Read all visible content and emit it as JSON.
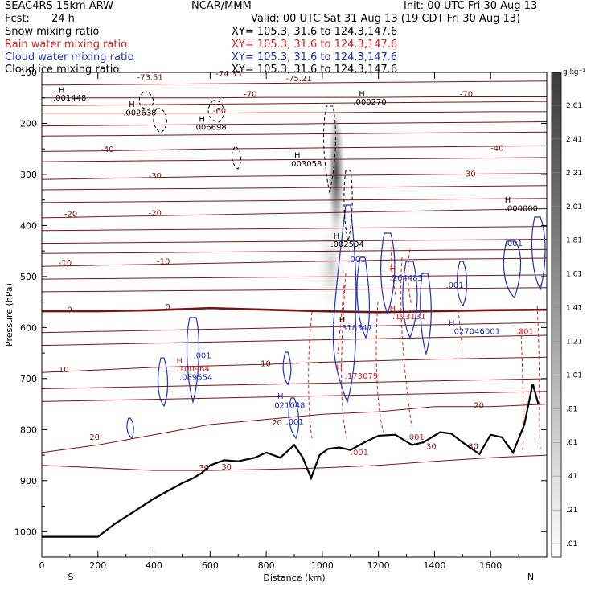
{
  "header": {
    "model": "SEAC4RS 15km ARW",
    "center": "NCAR/MMM",
    "init": "Init: 00 UTC Fri 30 Aug 13",
    "fcst_label": "Fcst:",
    "fcst_value": "24 h",
    "valid": "Valid: 00 UTC Sat 31 Aug 13 (19 CDT Fri 30 Aug 13)",
    "fields": [
      {
        "name": "Snow mixing ratio",
        "xy": "XY= 105.3, 31.6 to 124.3,147.6",
        "color": "#000000"
      },
      {
        "name": "Rain water mixing ratio",
        "xy": "XY= 105.3, 31.6 to 124.3,147.6",
        "color": "#e02020"
      },
      {
        "name": "Cloud water mixing ratio",
        "xy": "XY= 105.3, 31.6 to 124.3,147.6",
        "color": "#2030c0"
      },
      {
        "name": "Cloud ice mixing ratio",
        "xy": "XY= 105.3, 31.6 to 124.3,147.6",
        "color": "#000000"
      }
    ]
  },
  "chart_data": {
    "type": "contour",
    "xlabel": "Distance (km)",
    "ylabel": "Pressure (hPa)",
    "xlim": [
      0,
      1800
    ],
    "ylim": [
      1050,
      100
    ],
    "x_ticks": [
      0,
      200,
      400,
      600,
      800,
      1000,
      1200,
      1400,
      1600
    ],
    "y_ticks": [
      100,
      200,
      300,
      400,
      500,
      600,
      700,
      800,
      900,
      1000
    ],
    "y_tick_labels": [
      "100",
      "200",
      "300",
      "400",
      "500",
      "600",
      "700",
      "800",
      "900",
      "1000"
    ],
    "x_end_labels": {
      "left": "S",
      "right": "N"
    },
    "colorbar": {
      "unit": "g kg⁻¹",
      "ticks": [
        "2.61",
        "2.41",
        "2.21",
        "2.01",
        "1.81",
        "1.61",
        "1.41",
        "1.21",
        "1.01",
        ".81",
        ".61",
        ".41",
        ".21",
        ".01"
      ]
    },
    "colors": {
      "temperature": "#7a1414",
      "zero_isotherm": "#7a1414",
      "rain": "#e02020",
      "cloud_water": "#2030c0",
      "ice": "#000000",
      "terrain": "#000000"
    },
    "terrain": [
      [
        0,
        1010
      ],
      [
        200,
        1010
      ],
      [
        260,
        985
      ],
      [
        330,
        960
      ],
      [
        400,
        935
      ],
      [
        450,
        920
      ],
      [
        500,
        905
      ],
      [
        540,
        895
      ],
      [
        570,
        885
      ],
      [
        600,
        870
      ],
      [
        650,
        860
      ],
      [
        700,
        862
      ],
      [
        760,
        855
      ],
      [
        800,
        845
      ],
      [
        850,
        855
      ],
      [
        900,
        830
      ],
      [
        930,
        855
      ],
      [
        960,
        895
      ],
      [
        990,
        850
      ],
      [
        1020,
        838
      ],
      [
        1060,
        835
      ],
      [
        1100,
        840
      ],
      [
        1150,
        825
      ],
      [
        1200,
        812
      ],
      [
        1260,
        810
      ],
      [
        1320,
        830
      ],
      [
        1360,
        825
      ],
      [
        1420,
        805
      ],
      [
        1460,
        808
      ],
      [
        1500,
        825
      ],
      [
        1560,
        848
      ],
      [
        1600,
        810
      ],
      [
        1640,
        815
      ],
      [
        1680,
        845
      ],
      [
        1720,
        790
      ],
      [
        1750,
        710
      ],
      [
        1770,
        750
      ]
    ],
    "isotherms": [
      {
        "label": "30",
        "p": [
          870,
          875,
          880,
          880,
          878,
          875,
          870,
          862,
          855,
          850
        ]
      },
      {
        "label": "20",
        "p": [
          845,
          830,
          810,
          790,
          780,
          770,
          765,
          755,
          755,
          750
        ]
      },
      {
        "label": "10",
        "p": [
          688,
          683,
          678,
          675,
          672,
          668,
          665,
          662,
          660,
          658
        ]
      },
      {
        "label": "0",
        "p": [
          568,
          568,
          566,
          562,
          565,
          568,
          570,
          568,
          566,
          565
        ]
      },
      {
        "label": "-10",
        "p": [
          480,
          478,
          476,
          474,
          472,
          470,
          468,
          466,
          465,
          464
        ]
      },
      {
        "label": "-20",
        "p": [
          385,
          383,
          381,
          379,
          377,
          375,
          373,
          371,
          369,
          367
        ]
      },
      {
        "label": "-30",
        "p": [
          310,
          308,
          306,
          304,
          303,
          302,
          301,
          300,
          299,
          298
        ]
      },
      {
        "label": "-40",
        "p": [
          255,
          254,
          252,
          250,
          249,
          248,
          247,
          246,
          245,
          244
        ]
      },
      {
        "label": "-60",
        "p": [
          180,
          180,
          180,
          180,
          179,
          179,
          178,
          178,
          177,
          177
        ]
      },
      {
        "label": "-70",
        "p": [
          150,
          150,
          150,
          150,
          149,
          149,
          149,
          148,
          148,
          148
        ]
      }
    ],
    "labels": [
      {
        "text": "-73.51",
        "x": 340,
        "p": 115,
        "color": "#7a1414"
      },
      {
        "text": "-74.35",
        "x": 620,
        "p": 108,
        "color": "#7a1414"
      },
      {
        "text": "-75.21",
        "x": 870,
        "p": 117,
        "color": "#7a1414"
      },
      {
        "text": "-70",
        "x": 720,
        "p": 148,
        "color": "#7a1414"
      },
      {
        "text": "-70",
        "x": 1490,
        "p": 148,
        "color": "#7a1414"
      },
      {
        "text": "-60",
        "x": 610,
        "p": 180,
        "color": "#7a1414"
      },
      {
        "text": "-40",
        "x": 210,
        "p": 256,
        "color": "#7a1414"
      },
      {
        "text": "-40",
        "x": 1600,
        "p": 254,
        "color": "#7a1414"
      },
      {
        "text": "-30",
        "x": 380,
        "p": 308,
        "color": "#7a1414"
      },
      {
        "text": "-30",
        "x": 1500,
        "p": 304,
        "color": "#7a1414"
      },
      {
        "text": "-20",
        "x": 80,
        "p": 383,
        "color": "#7a1414"
      },
      {
        "text": "-20",
        "x": 380,
        "p": 381,
        "color": "#7a1414"
      },
      {
        "text": "-10",
        "x": 60,
        "p": 478,
        "color": "#7a1414"
      },
      {
        "text": "-10",
        "x": 410,
        "p": 476,
        "color": "#7a1414"
      },
      {
        "text": "0",
        "x": 90,
        "p": 570,
        "color": "#7a1414"
      },
      {
        "text": "0",
        "x": 440,
        "p": 565,
        "color": "#7a1414"
      },
      {
        "text": "10",
        "x": 60,
        "p": 688,
        "color": "#7a1414"
      },
      {
        "text": "10",
        "x": 780,
        "p": 676,
        "color": "#7a1414"
      },
      {
        "text": "20",
        "x": 170,
        "p": 820,
        "color": "#7a1414"
      },
      {
        "text": "20",
        "x": 820,
        "p": 792,
        "color": "#7a1414"
      },
      {
        "text": "20",
        "x": 1540,
        "p": 758,
        "color": "#7a1414"
      },
      {
        "text": "30",
        "x": 560,
        "p": 880,
        "color": "#7a1414"
      },
      {
        "text": "30",
        "x": 640,
        "p": 878,
        "color": "#7a1414"
      },
      {
        "text": "30",
        "x": 1370,
        "p": 838,
        "color": "#7a1414"
      },
      {
        "text": "30",
        "x": 1520,
        "p": 838,
        "color": "#7a1414"
      },
      {
        "text": "H",
        "x": 60,
        "p": 140,
        "color": "#000000"
      },
      {
        "text": ".001448",
        "x": 40,
        "p": 155,
        "color": "#000000"
      },
      {
        "text": "H",
        "x": 310,
        "p": 168,
        "color": "#000000"
      },
      {
        "text": ".002638",
        "x": 290,
        "p": 184,
        "color": "#000000"
      },
      {
        "text": "H",
        "x": 560,
        "p": 197,
        "color": "#000000"
      },
      {
        "text": ".006698",
        "x": 540,
        "p": 213,
        "color": "#000000"
      },
      {
        "text": "H",
        "x": 900,
        "p": 268,
        "color": "#000000"
      },
      {
        "text": ".003058",
        "x": 880,
        "p": 284,
        "color": "#000000"
      },
      {
        "text": "H",
        "x": 1130,
        "p": 147,
        "color": "#000000"
      },
      {
        "text": ".000270",
        "x": 1110,
        "p": 163,
        "color": "#000000"
      },
      {
        "text": "H",
        "x": 1650,
        "p": 355,
        "color": "#000000"
      },
      {
        "text": ".000000",
        "x": 1650,
        "p": 372,
        "color": "#000000"
      },
      {
        "text": "H",
        "x": 1040,
        "p": 426,
        "color": "#000000"
      },
      {
        "text": ".002504",
        "x": 1030,
        "p": 442,
        "color": "#000000"
      },
      {
        "text": ".001",
        "x": 1650,
        "p": 440,
        "color": "#2030c0"
      },
      {
        "text": ".001",
        "x": 1090,
        "p": 472,
        "color": "#2030c0"
      },
      {
        "text": "H",
        "x": 1240,
        "p": 490,
        "color": "#e02020"
      },
      {
        "text": ".264483",
        "x": 1240,
        "p": 508,
        "color": "#2030c0"
      },
      {
        "text": ".001",
        "x": 1440,
        "p": 522,
        "color": "#2030c0"
      },
      {
        "text": "H",
        "x": 1240,
        "p": 568,
        "color": "#e02020"
      },
      {
        "text": ".123131",
        "x": 1250,
        "p": 584,
        "color": "#e02020"
      },
      {
        "text": "H",
        "x": 1060,
        "p": 590,
        "color": "#000000"
      },
      {
        "text": ".318347",
        "x": 1060,
        "p": 606,
        "color": "#2030c0"
      },
      {
        "text": "H",
        "x": 1450,
        "p": 596,
        "color": "#2030c0"
      },
      {
        "text": ".027046",
        "x": 1460,
        "p": 613,
        "color": "#2030c0"
      },
      {
        "text": ".001",
        "x": 1570,
        "p": 613,
        "color": "#2030c0"
      },
      {
        "text": ".001",
        "x": 1690,
        "p": 613,
        "color": "#e02020"
      },
      {
        "text": ".001",
        "x": 540,
        "p": 660,
        "color": "#2030c0"
      },
      {
        "text": "H",
        "x": 480,
        "p": 670,
        "color": "#e02020"
      },
      {
        "text": ".100964",
        "x": 480,
        "p": 686,
        "color": "#e02020"
      },
      {
        "text": ".089554",
        "x": 490,
        "p": 703,
        "color": "#2030c0"
      },
      {
        "text": "H",
        "x": 1050,
        "p": 684,
        "color": "#e02020"
      },
      {
        "text": ".173079",
        "x": 1080,
        "p": 700,
        "color": "#e02020"
      },
      {
        "text": "H",
        "x": 840,
        "p": 740,
        "color": "#2030c0"
      },
      {
        "text": ".021048",
        "x": 820,
        "p": 758,
        "color": "#2030c0"
      },
      {
        "text": ".001",
        "x": 870,
        "p": 790,
        "color": "#2030c0"
      },
      {
        "text": ".001",
        "x": 1300,
        "p": 820,
        "color": "#e02020"
      },
      {
        "text": ".001",
        "x": 1100,
        "p": 850,
        "color": "#e02020"
      }
    ]
  }
}
